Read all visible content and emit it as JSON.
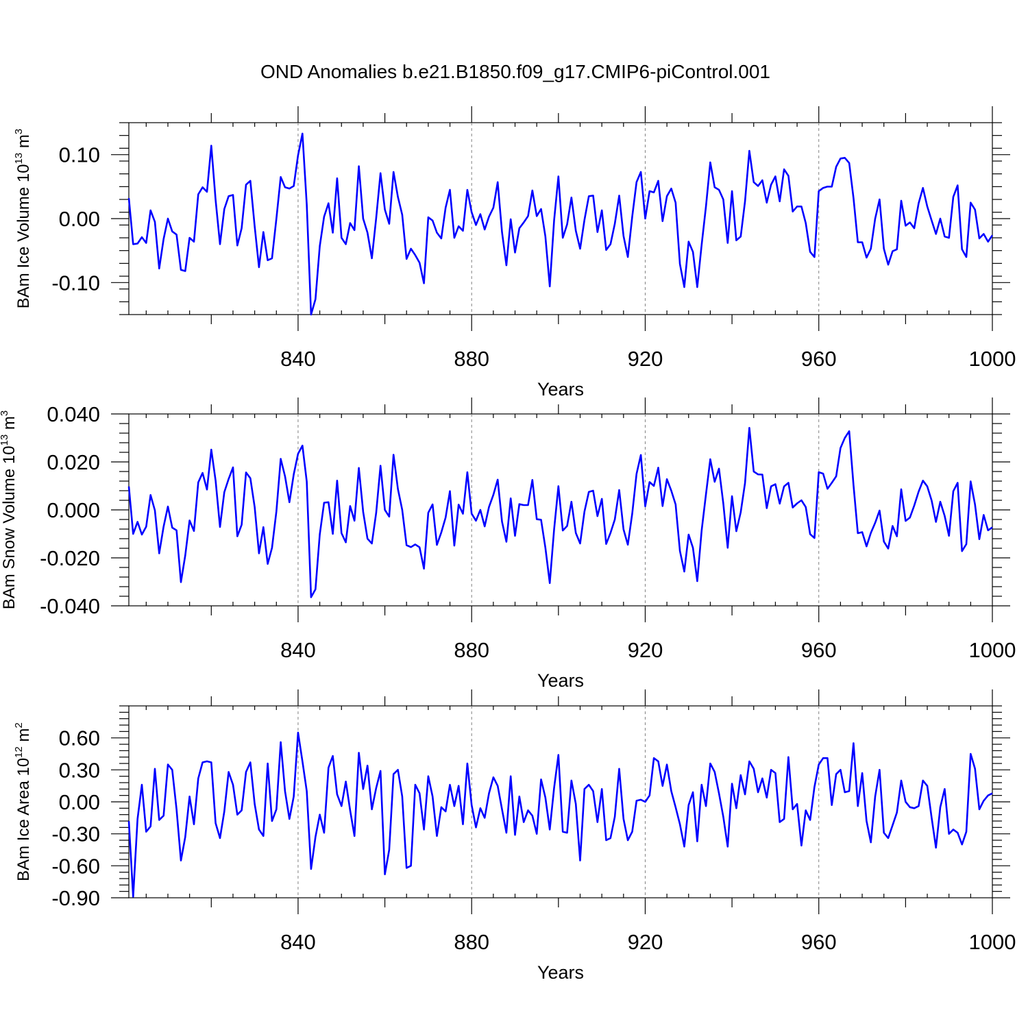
{
  "title": "OND Anomalies b.e21.B1850.f09_g17.CMIP6-piControl.001",
  "colors": {
    "series": "#0000ff",
    "axis": "#000000",
    "grid": "#808080"
  },
  "chart_data": [
    {
      "type": "line",
      "ylabel_main": "BAm Ice Volume 10",
      "ylabel_exp": "13",
      "ylabel_unit": " m",
      "ylabel_unit_exp": "3",
      "xlabel": "Years",
      "xlim": [
        801,
        1000
      ],
      "ylim": [
        -0.15,
        0.15
      ],
      "xticks": [
        840,
        880,
        920,
        960,
        1000
      ],
      "xtick_labels": [
        "840",
        "880",
        "920",
        "960",
        "1000"
      ],
      "yticks": [
        -0.1,
        0.0,
        0.1
      ],
      "ytick_labels": [
        "-0.10",
        "0.00",
        "0.10"
      ],
      "x_start": 801,
      "values": [
        0.032,
        -0.04,
        -0.039,
        -0.029,
        -0.038,
        0.013,
        -0.005,
        -0.078,
        -0.032,
        0.0,
        -0.02,
        -0.025,
        -0.08,
        -0.082,
        -0.03,
        -0.036,
        0.038,
        0.049,
        0.042,
        0.114,
        0.029,
        -0.04,
        0.015,
        0.035,
        0.037,
        -0.042,
        -0.015,
        0.053,
        0.059,
        -0.012,
        -0.076,
        -0.021,
        -0.065,
        -0.062,
        0.0,
        0.065,
        0.049,
        0.047,
        0.051,
        0.099,
        0.133,
        0.022,
        -0.15,
        -0.126,
        -0.043,
        0.003,
        0.024,
        -0.022,
        0.063,
        -0.03,
        -0.04,
        -0.007,
        -0.018,
        0.082,
        0.0,
        -0.022,
        -0.062,
        0.001,
        0.071,
        0.014,
        -0.008,
        0.073,
        0.034,
        0.006,
        -0.063,
        -0.047,
        -0.057,
        -0.069,
        -0.101,
        0.002,
        -0.003,
        -0.022,
        -0.031,
        0.017,
        0.045,
        -0.03,
        -0.012,
        -0.019,
        0.045,
        0.01,
        -0.01,
        0.007,
        -0.017,
        0.003,
        0.017,
        0.057,
        -0.021,
        -0.073,
        -0.001,
        -0.053,
        -0.015,
        -0.006,
        0.004,
        0.044,
        0.004,
        0.015,
        -0.028,
        -0.106,
        -0.003,
        0.066,
        -0.03,
        -0.009,
        0.033,
        -0.019,
        -0.047,
        -0.002,
        0.035,
        0.036,
        -0.021,
        0.013,
        -0.049,
        -0.04,
        -0.008,
        0.036,
        -0.027,
        -0.06,
        0.003,
        0.057,
        0.073,
        0.0,
        0.043,
        0.041,
        0.059,
        -0.004,
        0.035,
        0.047,
        0.025,
        -0.071,
        -0.107,
        -0.036,
        -0.052,
        -0.107,
        -0.041,
        0.019,
        0.088,
        0.049,
        0.045,
        0.03,
        -0.038,
        0.043,
        -0.034,
        -0.028,
        0.027,
        0.106,
        0.057,
        0.051,
        0.06,
        0.025,
        0.053,
        0.066,
        0.027,
        0.077,
        0.067,
        0.011,
        0.019,
        0.019,
        -0.007,
        -0.052,
        -0.06,
        0.043,
        0.048,
        0.05,
        0.05,
        0.081,
        0.094,
        0.095,
        0.087,
        0.032,
        -0.037,
        -0.037,
        -0.061,
        -0.047,
        0.0,
        0.03,
        -0.047,
        -0.072,
        -0.051,
        -0.048,
        0.028,
        -0.011,
        -0.006,
        -0.015,
        0.024,
        0.048,
        0.019,
        -0.003,
        -0.024,
        0.0,
        -0.028,
        -0.03,
        0.034,
        0.052,
        -0.048,
        -0.06,
        0.025,
        0.014,
        -0.031,
        -0.024,
        -0.036,
        -0.026
      ]
    },
    {
      "type": "line",
      "ylabel_main": "BAm Snow Volume 10",
      "ylabel_exp": "13",
      "ylabel_unit": " m",
      "ylabel_unit_exp": "3",
      "xlabel": "Years",
      "xlim": [
        801,
        1000
      ],
      "ylim": [
        -0.04,
        0.04
      ],
      "xticks": [
        840,
        880,
        920,
        960,
        1000
      ],
      "xtick_labels": [
        "840",
        "880",
        "920",
        "960",
        "1000"
      ],
      "yticks": [
        -0.04,
        -0.02,
        0.0,
        0.02,
        0.04
      ],
      "ytick_labels": [
        "-0.040",
        "-0.020",
        "0.000",
        "0.020",
        "0.040"
      ],
      "x_start": 801,
      "values": [
        0.0098,
        -0.01,
        -0.005,
        -0.0103,
        -0.007,
        0.0062,
        -0.0002,
        -0.0181,
        -0.007,
        0.0014,
        -0.0074,
        -0.0085,
        -0.0301,
        -0.019,
        -0.0044,
        -0.0088,
        0.0115,
        0.0154,
        0.0085,
        0.0251,
        0.0122,
        -0.0071,
        0.0074,
        0.0129,
        0.0177,
        -0.011,
        -0.0062,
        0.0156,
        0.0132,
        0.0012,
        -0.0181,
        -0.0072,
        -0.0225,
        -0.0158,
        -0.0006,
        0.0213,
        0.014,
        0.0032,
        0.0148,
        0.0234,
        0.0268,
        0.0118,
        -0.0364,
        -0.0331,
        -0.0102,
        0.003,
        0.0032,
        -0.01,
        0.0122,
        -0.0097,
        -0.0135,
        0.0016,
        -0.0045,
        0.0175,
        -0.0008,
        -0.012,
        -0.014,
        -0.0012,
        0.0184,
        0.0,
        -0.0028,
        0.023,
        0.0087,
        0.0,
        -0.0147,
        -0.0155,
        -0.0144,
        -0.0156,
        -0.0245,
        -0.0012,
        0.0023,
        -0.0146,
        -0.0094,
        -0.0032,
        0.0078,
        -0.0149,
        0.0022,
        -0.0016,
        0.0157,
        -0.0016,
        -0.0045,
        0.0,
        -0.0069,
        0.0012,
        0.0063,
        0.0126,
        -0.0049,
        -0.0133,
        0.0048,
        -0.0108,
        0.0024,
        0.002,
        0.002,
        0.0125,
        -0.0039,
        -0.0041,
        -0.0158,
        -0.0305,
        -0.0082,
        0.0099,
        -0.0086,
        -0.0067,
        0.0034,
        -0.0096,
        -0.014,
        -0.0007,
        0.0075,
        0.008,
        -0.0026,
        0.0046,
        -0.0142,
        -0.0096,
        -0.004,
        0.0083,
        -0.0081,
        -0.0145,
        -0.0016,
        0.015,
        0.0229,
        0.0015,
        0.0116,
        0.01,
        0.0176,
        0.0016,
        0.0128,
        0.008,
        0.0023,
        -0.0171,
        -0.0257,
        -0.0103,
        -0.0158,
        -0.0297,
        -0.0086,
        0.0065,
        0.0211,
        0.0117,
        0.0172,
        0.0027,
        -0.0158,
        0.0057,
        -0.0089,
        -0.001,
        0.0112,
        0.0342,
        0.016,
        0.0148,
        0.0147,
        0.0007,
        0.0098,
        0.0107,
        0.0026,
        0.0098,
        0.0113,
        0.001,
        0.0027,
        0.004,
        0.0012,
        -0.0101,
        -0.0117,
        0.0157,
        0.0151,
        0.0088,
        0.0113,
        0.014,
        0.0258,
        0.03,
        0.0328,
        0.0103,
        -0.0097,
        -0.0093,
        -0.0152,
        -0.0096,
        -0.0054,
        -0.0003,
        -0.0132,
        -0.0161,
        -0.0067,
        -0.011,
        0.0086,
        -0.0046,
        -0.0032,
        0.0018,
        0.0076,
        0.0122,
        0.0098,
        0.0039,
        -0.005,
        0.0034,
        -0.0025,
        -0.0108,
        0.0078,
        0.0113,
        -0.0172,
        -0.0143,
        0.0119,
        0.0022,
        -0.0122,
        -0.0021,
        -0.0085,
        -0.0073
      ]
    },
    {
      "type": "line",
      "ylabel_main": "BAm Ice Area 10",
      "ylabel_exp": "12",
      "ylabel_unit": " m",
      "ylabel_unit_exp": "2",
      "xlabel": "Years",
      "xlim": [
        801,
        1000
      ],
      "ylim": [
        -0.9,
        0.9
      ],
      "xticks": [
        840,
        880,
        920,
        960,
        1000
      ],
      "xtick_labels": [
        "840",
        "880",
        "920",
        "960",
        "1000"
      ],
      "yticks": [
        -0.9,
        -0.6,
        -0.3,
        0.0,
        0.3,
        0.6
      ],
      "ytick_labels": [
        "-0.90",
        "-0.60",
        "-0.30",
        "0.00",
        "0.30",
        "0.60"
      ],
      "x_start": 801,
      "values": [
        -0.18,
        -0.89,
        -0.16,
        0.16,
        -0.28,
        -0.23,
        0.31,
        -0.17,
        -0.13,
        0.35,
        0.3,
        -0.07,
        -0.55,
        -0.33,
        0.05,
        -0.21,
        0.22,
        0.37,
        0.38,
        0.37,
        -0.2,
        -0.34,
        -0.09,
        0.28,
        0.16,
        -0.12,
        -0.08,
        0.28,
        0.37,
        -0.02,
        -0.26,
        -0.32,
        0.36,
        -0.18,
        -0.07,
        0.56,
        0.1,
        -0.16,
        0.05,
        0.65,
        0.38,
        0.1,
        -0.63,
        -0.33,
        -0.12,
        -0.29,
        0.32,
        0.43,
        0.07,
        -0.04,
        0.19,
        -0.08,
        -0.32,
        0.46,
        0.12,
        0.34,
        -0.07,
        0.13,
        0.29,
        -0.68,
        -0.45,
        0.26,
        0.3,
        0.05,
        -0.62,
        -0.6,
        0.16,
        0.08,
        -0.26,
        0.24,
        0.05,
        -0.32,
        -0.05,
        -0.09,
        0.16,
        -0.04,
        0.15,
        -0.21,
        0.36,
        -0.03,
        -0.24,
        -0.06,
        -0.15,
        0.08,
        0.23,
        0.15,
        -0.07,
        -0.29,
        0.24,
        -0.31,
        0.05,
        -0.19,
        -0.08,
        -0.13,
        -0.3,
        0.21,
        0.04,
        -0.26,
        0.13,
        0.44,
        -0.28,
        -0.29,
        0.2,
        -0.02,
        -0.55,
        0.12,
        0.16,
        0.1,
        -0.19,
        0.12,
        -0.36,
        -0.34,
        -0.14,
        0.31,
        -0.16,
        -0.36,
        -0.28,
        0.01,
        0.02,
        0.0,
        0.06,
        0.41,
        0.38,
        0.15,
        0.35,
        0.1,
        -0.05,
        -0.21,
        -0.42,
        -0.03,
        0.09,
        -0.37,
        0.16,
        -0.04,
        0.36,
        0.28,
        0.08,
        -0.14,
        -0.42,
        0.17,
        -0.06,
        0.25,
        0.07,
        0.38,
        0.31,
        0.09,
        0.22,
        0.04,
        0.3,
        0.27,
        -0.19,
        -0.16,
        0.42,
        -0.07,
        -0.02,
        -0.41,
        -0.08,
        -0.17,
        0.14,
        0.35,
        0.41,
        0.41,
        -0.03,
        0.26,
        0.3,
        0.09,
        0.1,
        0.55,
        -0.04,
        0.27,
        -0.18,
        -0.38,
        0.05,
        0.3,
        -0.29,
        -0.34,
        -0.22,
        -0.1,
        0.2,
        0.0,
        -0.05,
        -0.06,
        -0.04,
        0.2,
        0.15,
        -0.15,
        -0.43,
        -0.05,
        0.12,
        -0.3,
        -0.26,
        -0.29,
        -0.4,
        -0.28,
        0.45,
        0.31,
        -0.07,
        0.01,
        0.06,
        0.08
      ]
    }
  ]
}
